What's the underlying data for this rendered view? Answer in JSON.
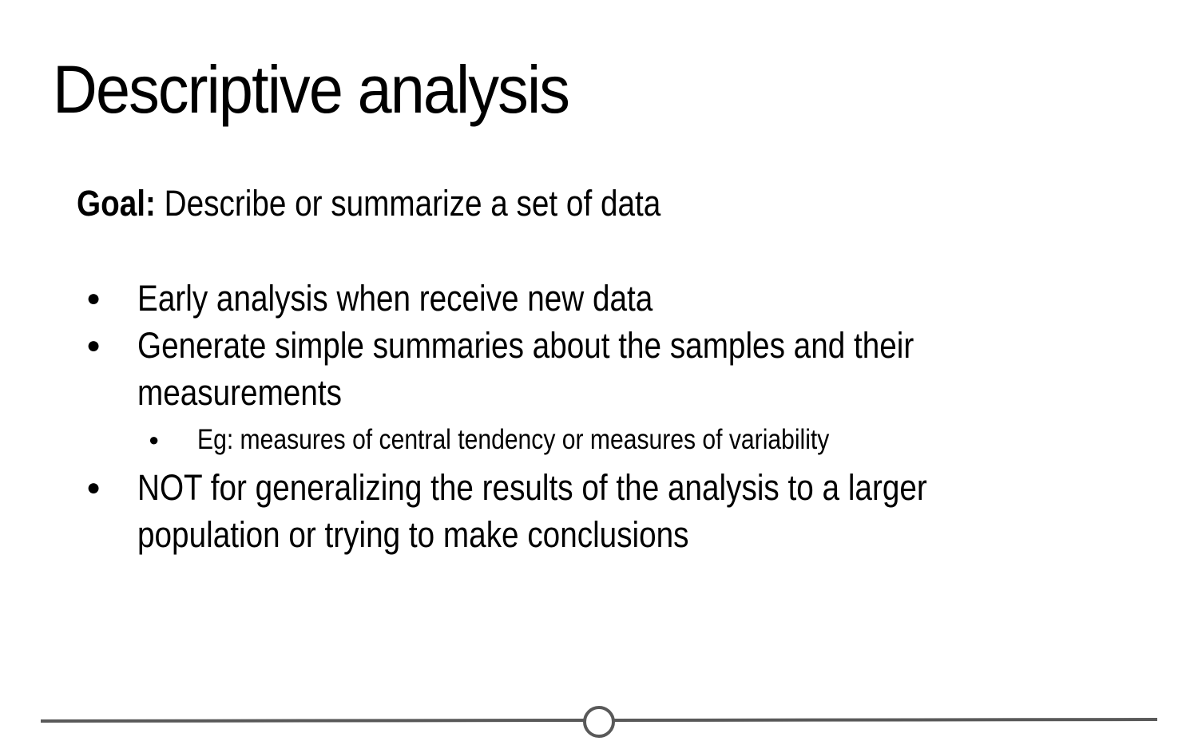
{
  "slide": {
    "title": "Descriptive analysis",
    "goal": {
      "label": "Goal:",
      "text": "Describe or summarize a set of data"
    },
    "bullet_symbol": "●",
    "bullets": [
      "Early analysis when receive new data",
      "Generate simple summaries about the samples and their measurements",
      "NOT for generalizing the results of the analysis to a larger population or trying to make conclusions"
    ],
    "sub_bullets": [
      "Eg: measures of central tendency or measures of variability"
    ]
  },
  "colors": {
    "text": "#000000",
    "background": "#ffffff",
    "timeline_line": "#595959"
  }
}
